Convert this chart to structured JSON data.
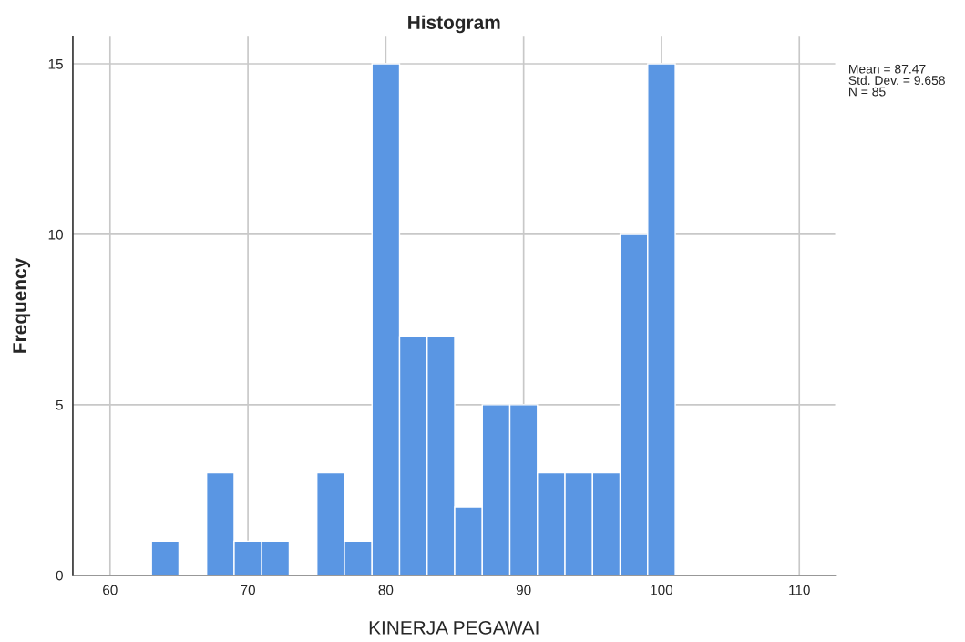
{
  "chart_data": {
    "type": "histogram",
    "title": "Histogram",
    "xlabel": "KINERJA PEGAWAI",
    "ylabel": "Frequency",
    "bins": [
      63,
      65,
      67,
      69,
      71,
      73,
      75,
      77,
      79,
      81,
      83,
      85,
      87,
      89,
      91,
      93,
      95,
      97,
      99,
      101
    ],
    "values": [
      1,
      0,
      3,
      1,
      1,
      0,
      3,
      1,
      15,
      7,
      7,
      2,
      5,
      5,
      3,
      3,
      3,
      10,
      15
    ],
    "color": "#5a96e3",
    "xlim": [
      57.3,
      112.6
    ],
    "xticks": [
      60,
      70,
      80,
      90,
      100,
      110
    ],
    "ylim": [
      0,
      15.8
    ],
    "yticks": [
      0,
      5,
      10,
      15
    ],
    "grid": true,
    "annotations": [
      "Mean = 87.47\nStd. Dev. = 9.658\nN = 85"
    ]
  }
}
